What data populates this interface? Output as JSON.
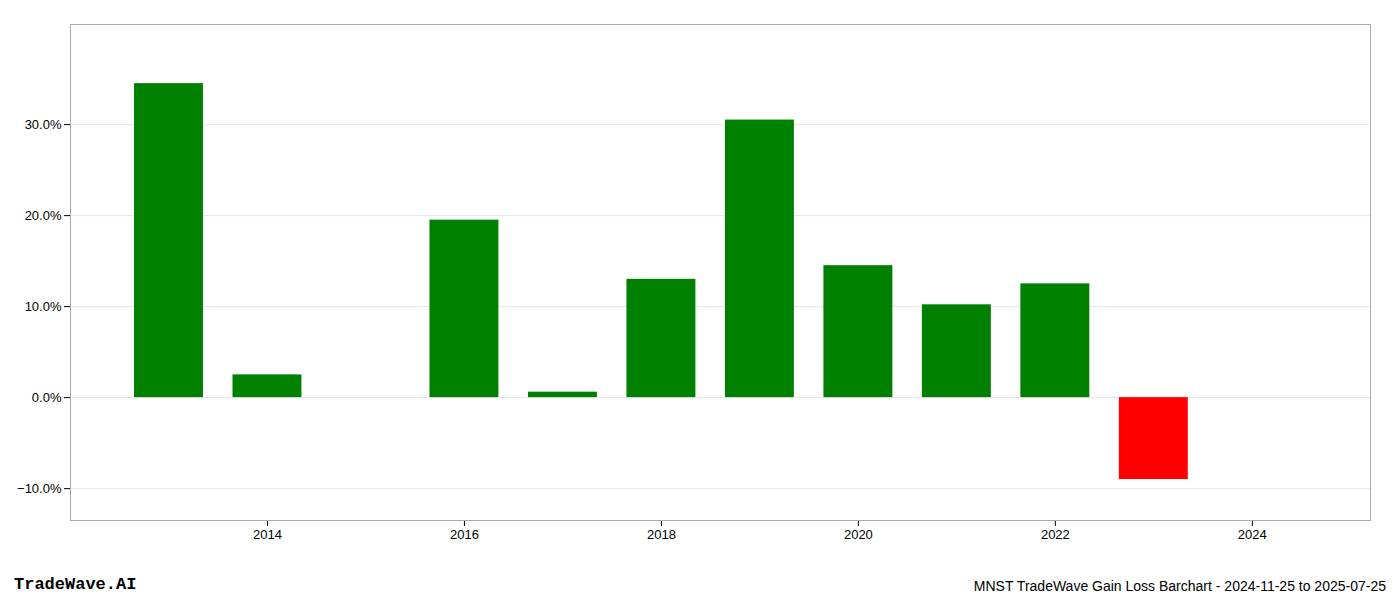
{
  "chart_data": {
    "type": "bar",
    "x": [
      2013,
      2014,
      2016,
      2017,
      2018,
      2019,
      2020,
      2021,
      2022,
      2023
    ],
    "values": [
      0.345,
      0.025,
      0.195,
      0.006,
      0.13,
      0.305,
      0.145,
      0.102,
      0.125,
      -0.09
    ],
    "colors": [
      "#008000",
      "#008000",
      "#008000",
      "#008000",
      "#008000",
      "#008000",
      "#008000",
      "#008000",
      "#008000",
      "#ff0000"
    ],
    "xlim": [
      2012.0,
      2025.2
    ],
    "xticks": [
      2014,
      2016,
      2018,
      2020,
      2022,
      2024
    ],
    "ylim": [
      -0.135,
      0.41
    ],
    "yticks": [
      {
        "value": -0.1,
        "label": "−10.0%"
      },
      {
        "value": 0,
        "label": "0.0%"
      },
      {
        "value": 0.1,
        "label": "10.0%"
      },
      {
        "value": 0.2,
        "label": "20.0%"
      },
      {
        "value": 0.3,
        "label": "30.0%"
      }
    ],
    "grid": true,
    "annotations": [
      "TradeWave.AI",
      "MNST TradeWave Gain Loss Barchart - 2024-11-25 to 2025-07-25"
    ]
  }
}
